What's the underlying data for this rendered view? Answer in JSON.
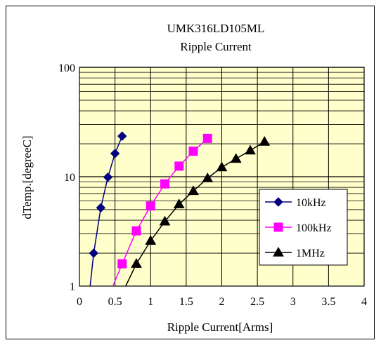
{
  "chart_data": {
    "type": "line",
    "title": "UMK316LD105ML",
    "subtitle": "Ripple Current",
    "xlabel": "Ripple Current[Arms]",
    "ylabel": "dTemp.[degreeC]",
    "xlim": [
      0,
      4
    ],
    "ylim": [
      1,
      100
    ],
    "yscale": "log",
    "x_ticks": [
      "0",
      "0.5",
      "1",
      "1.5",
      "2",
      "2.5",
      "3",
      "3.5",
      "4"
    ],
    "y_ticks": [
      "1",
      "10",
      "100"
    ],
    "grid": true,
    "plot_background": "#FFFFCC",
    "legend_position": "lower-right",
    "series": [
      {
        "name": "10kHz",
        "color": "#000080",
        "marker": "diamond",
        "points": [
          [
            0.2,
            2.0
          ],
          [
            0.3,
            5.2
          ],
          [
            0.4,
            9.9
          ],
          [
            0.5,
            16.3
          ],
          [
            0.6,
            23.5
          ]
        ],
        "fit": [
          [
            0.15,
            1.0
          ],
          [
            0.2,
            2.0
          ],
          [
            0.3,
            5.2
          ],
          [
            0.4,
            9.9
          ],
          [
            0.5,
            16.3
          ],
          [
            0.6,
            23.5
          ]
        ]
      },
      {
        "name": "100kHz",
        "color": "#FF00FF",
        "marker": "square",
        "points": [
          [
            0.6,
            1.6
          ],
          [
            0.8,
            3.2
          ],
          [
            1.0,
            5.4
          ],
          [
            1.2,
            8.6
          ],
          [
            1.4,
            12.5
          ],
          [
            1.6,
            17.1
          ],
          [
            1.8,
            22.4
          ]
        ],
        "fit": [
          [
            0.47,
            1.0
          ],
          [
            0.6,
            1.6
          ],
          [
            0.8,
            3.2
          ],
          [
            1.0,
            5.4
          ],
          [
            1.2,
            8.6
          ],
          [
            1.4,
            12.5
          ],
          [
            1.6,
            17.1
          ],
          [
            1.8,
            22.4
          ]
        ]
      },
      {
        "name": "1MHz",
        "color": "#000000",
        "marker": "triangle",
        "points": [
          [
            0.8,
            1.6
          ],
          [
            1.0,
            2.6
          ],
          [
            1.2,
            3.9
          ],
          [
            1.4,
            5.6
          ],
          [
            1.6,
            7.4
          ],
          [
            1.8,
            9.7
          ],
          [
            2.0,
            12.2
          ],
          [
            2.2,
            14.6
          ],
          [
            2.4,
            17.4
          ],
          [
            2.6,
            20.9
          ]
        ],
        "fit": [
          [
            0.65,
            1.0
          ],
          [
            0.8,
            1.6
          ],
          [
            1.0,
            2.6
          ],
          [
            1.2,
            3.9
          ],
          [
            1.4,
            5.6
          ],
          [
            1.6,
            7.4
          ],
          [
            1.8,
            9.7
          ],
          [
            2.0,
            12.2
          ],
          [
            2.2,
            14.6
          ],
          [
            2.4,
            17.4
          ],
          [
            2.6,
            20.9
          ]
        ]
      }
    ]
  }
}
